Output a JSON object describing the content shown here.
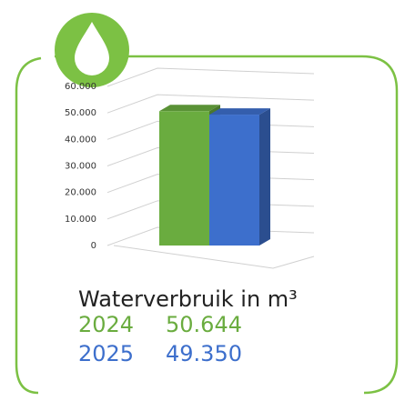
{
  "chart_data": {
    "type": "bar3d",
    "title": "Waterverbruik in m³",
    "categories": [
      "2024",
      "2025"
    ],
    "series": [
      {
        "name": "2024",
        "color": "#6aac3f"
      },
      {
        "name": "2025",
        "color": "#3d6fcc"
      }
    ],
    "values": [
      50644,
      49350
    ],
    "value_labels": [
      "50.644",
      "49.350"
    ],
    "colors": [
      "#6aac3f",
      "#3d6fcc"
    ],
    "ylim": [
      0,
      60000
    ],
    "yticks": [
      0,
      {
        "value": 10000,
        "label": "10.000"
      },
      {
        "value": 20000,
        "label": "20.000"
      },
      {
        "value": 30000,
        "label": "30.000"
      },
      {
        "value": 40000,
        "label": "40.000"
      },
      {
        "value": 50000,
        "label": "50.000"
      },
      {
        "value": 60000,
        "label": "60.000"
      }
    ],
    "grid": true
  }
}
